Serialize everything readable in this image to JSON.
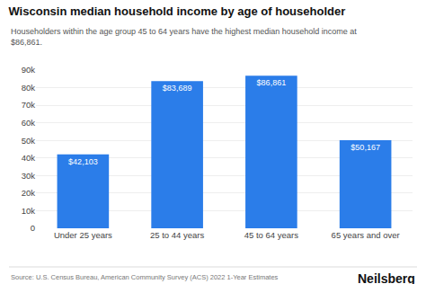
{
  "chart_data": {
    "type": "bar",
    "title": "Wisconsin median household income by age of householder",
    "subtitle": "Householders within the age group 45 to 64 years have the highest median household income at\n$86,861.",
    "categories": [
      "Under 25 years",
      "25 to 44 years",
      "45 to 64 years",
      "65 years and over"
    ],
    "values": [
      42103,
      83689,
      86861,
      50167
    ],
    "value_labels": [
      "$42,103",
      "$83,689",
      "$86,861",
      "$50,167"
    ],
    "data_labels": true,
    "color": "#2b7de9",
    "ylim": [
      0,
      90000
    ],
    "yticks": [
      0,
      {
        "value": 10000,
        "label": "10k"
      },
      {
        "value": 20000,
        "label": "20k"
      },
      {
        "value": 30000,
        "label": "30k"
      },
      {
        "value": 40000,
        "label": "40k"
      },
      {
        "value": 50000,
        "label": "50k"
      },
      {
        "value": 60000,
        "label": "60k"
      },
      {
        "value": 70000,
        "label": "70k"
      },
      {
        "value": 80000,
        "label": "80k"
      },
      {
        "value": 90000,
        "label": "90k"
      }
    ],
    "grid": true,
    "annotations": [
      "Source: U.S. Census Bureau, American Community Survey (ACS) 2022 1-Year Estimates",
      "Neilsberg"
    ]
  }
}
